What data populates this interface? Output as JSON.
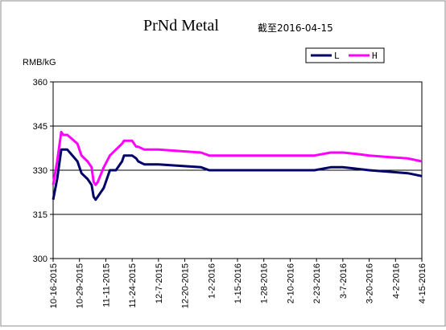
{
  "chart_data": {
    "type": "line",
    "title": "PrNd Metal",
    "subtitle": "截至2016-04-15",
    "ylabel": "RMB/kG",
    "ylim": [
      300,
      360
    ],
    "yticks": [
      300,
      315,
      330,
      345,
      360
    ],
    "grid": "horizontal",
    "legend_position": "top-right",
    "x_tick_labels": [
      "10-16-2015",
      "10-29-2015",
      "11-11-2015",
      "11-24-2015",
      "12-7-2015",
      "12-20-2015",
      "1-2-2016",
      "1-15-2016",
      "1-28-2016",
      "2-10-2016",
      "2-23-2016",
      "3-7-2016",
      "3-20-2016",
      "4-2-2016",
      "4-15-2016"
    ],
    "x": [
      "2015-10-16",
      "2015-10-18",
      "2015-10-20",
      "2015-10-21",
      "2015-10-23",
      "2015-10-28",
      "2015-10-30",
      "2015-11-02",
      "2015-11-04",
      "2015-11-05",
      "2015-11-06",
      "2015-11-07",
      "2015-11-10",
      "2015-11-13",
      "2015-11-16",
      "2015-11-19",
      "2015-11-20",
      "2015-11-24",
      "2015-11-26",
      "2015-11-27",
      "2015-11-30",
      "2015-12-07",
      "2015-12-28",
      "2016-01-01",
      "2016-02-22",
      "2016-03-01",
      "2016-03-07",
      "2016-03-14",
      "2016-03-20",
      "2016-03-29",
      "2016-04-08",
      "2016-04-15"
    ],
    "series": [
      {
        "name": "L",
        "color": "#000066",
        "values": [
          320,
          327,
          337,
          337,
          337,
          333,
          329,
          327,
          325,
          321,
          320,
          321,
          324,
          330,
          330,
          333,
          335,
          335,
          334,
          333,
          332,
          332,
          331,
          330,
          330,
          331,
          331,
          330.5,
          330,
          329.5,
          329,
          328
        ]
      },
      {
        "name": "H",
        "color": "#ff00ff",
        "values": [
          325,
          333,
          343,
          342,
          342,
          339,
          335,
          333,
          331,
          326,
          325,
          326,
          331,
          335,
          337,
          339,
          340,
          340,
          338,
          338,
          337,
          337,
          336,
          335,
          335,
          336,
          336,
          335.5,
          335,
          334.5,
          334,
          333
        ]
      }
    ]
  }
}
